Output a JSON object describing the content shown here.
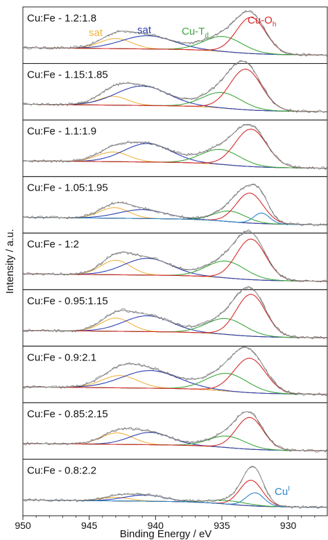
{
  "chart_data": {
    "type": "line",
    "xlabel": "Binding Energy / eV",
    "ylabel": "Intensity / a.u.",
    "xlim": [
      950,
      927
    ],
    "x_reversed": true,
    "xticks": [
      950,
      945,
      940,
      935,
      930
    ],
    "colors": {
      "data": "#222222",
      "envelope": "#8a8a8a",
      "background": "#111111",
      "sat_high": "#f0b341",
      "sat_low": "#2b3fb0",
      "cu_td": "#3aa63a",
      "cu_oh": "#d42a2a",
      "cu_i": "#2a86c8"
    },
    "annotations": [
      {
        "text": "sat",
        "color": "#f0b341"
      },
      {
        "text": "sat",
        "color": "#2b3fb0"
      },
      {
        "text": "Cu-T",
        "sub": "d",
        "color": "#3aa63a"
      },
      {
        "text": "Cu-O",
        "sub": "h",
        "color": "#d42a2a"
      },
      {
        "text": "Cu",
        "sup": "I",
        "color": "#2a86c8"
      }
    ],
    "panels": [
      {
        "label": "Cu:Fe - 1.2:1.8",
        "peaks": [
          {
            "name": "sat",
            "color": "#f0b341",
            "center": 943.0,
            "fwhm": 2.8,
            "height": 0.23
          },
          {
            "name": "sat",
            "color": "#2b3fb0",
            "center": 940.6,
            "fwhm": 4.6,
            "height": 0.3
          },
          {
            "name": "Cu-Td",
            "color": "#3aa63a",
            "center": 934.9,
            "fwhm": 3.4,
            "height": 0.34
          },
          {
            "name": "Cu-Oh",
            "color": "#d42a2a",
            "center": 932.8,
            "fwhm": 2.6,
            "height": 0.82
          }
        ]
      },
      {
        "label": "Cu:Fe - 1.15:1.85",
        "peaks": [
          {
            "name": "sat",
            "color": "#f0b341",
            "center": 943.2,
            "fwhm": 2.6,
            "height": 0.2
          },
          {
            "name": "sat",
            "color": "#2b3fb0",
            "center": 941.0,
            "fwhm": 4.6,
            "height": 0.44
          },
          {
            "name": "Cu-Td",
            "color": "#3aa63a",
            "center": 935.0,
            "fwhm": 3.4,
            "height": 0.35
          },
          {
            "name": "Cu-Oh",
            "color": "#d42a2a",
            "center": 933.2,
            "fwhm": 2.8,
            "height": 0.92
          }
        ]
      },
      {
        "label": "Cu:Fe - 1.1:1.9",
        "peaks": [
          {
            "name": "sat",
            "color": "#f0b341",
            "center": 943.2,
            "fwhm": 2.8,
            "height": 0.22
          },
          {
            "name": "sat",
            "color": "#2b3fb0",
            "center": 940.6,
            "fwhm": 4.2,
            "height": 0.42
          },
          {
            "name": "Cu-Td",
            "color": "#3aa63a",
            "center": 935.1,
            "fwhm": 3.4,
            "height": 0.34
          },
          {
            "name": "Cu-Oh",
            "color": "#d42a2a",
            "center": 932.8,
            "fwhm": 2.8,
            "height": 0.85
          }
        ]
      },
      {
        "label": "Cu:Fe - 1.05:1.95",
        "peaks": [
          {
            "name": "sat",
            "color": "#f0b341",
            "center": 943.1,
            "fwhm": 2.6,
            "height": 0.24
          },
          {
            "name": "sat",
            "color": "#2b3fb0",
            "center": 941.0,
            "fwhm": 4.2,
            "height": 0.2
          },
          {
            "name": "Cu-Td",
            "color": "#3aa63a",
            "center": 934.4,
            "fwhm": 2.8,
            "height": 0.24
          },
          {
            "name": "Cu-Oh",
            "color": "#d42a2a",
            "center": 932.9,
            "fwhm": 2.4,
            "height": 0.68
          },
          {
            "name": "CuI",
            "color": "#2a86c8",
            "center": 932.0,
            "fwhm": 1.4,
            "height": 0.24
          }
        ]
      },
      {
        "label": "Cu:Fe - 1:2",
        "peaks": [
          {
            "name": "sat",
            "color": "#f0b341",
            "center": 943.0,
            "fwhm": 2.6,
            "height": 0.33
          },
          {
            "name": "sat",
            "color": "#2b3fb0",
            "center": 940.6,
            "fwhm": 4.2,
            "height": 0.38
          },
          {
            "name": "Cu-Td",
            "color": "#3aa63a",
            "center": 934.7,
            "fwhm": 3.4,
            "height": 0.38
          },
          {
            "name": "Cu-Oh",
            "color": "#d42a2a",
            "center": 932.8,
            "fwhm": 2.6,
            "height": 0.92
          }
        ]
      },
      {
        "label": "Cu:Fe - 0.95:1.15",
        "peaks": [
          {
            "name": "sat",
            "color": "#f0b341",
            "center": 943.0,
            "fwhm": 2.6,
            "height": 0.3
          },
          {
            "name": "sat",
            "color": "#2b3fb0",
            "center": 940.6,
            "fwhm": 4.2,
            "height": 0.36
          },
          {
            "name": "Cu-Td",
            "color": "#3aa63a",
            "center": 934.7,
            "fwhm": 3.4,
            "height": 0.36
          },
          {
            "name": "Cu-Oh",
            "color": "#d42a2a",
            "center": 932.8,
            "fwhm": 2.6,
            "height": 0.95
          }
        ]
      },
      {
        "label": "Cu:Fe - 0.9:2.1",
        "peaks": [
          {
            "name": "sat",
            "color": "#f0b341",
            "center": 942.7,
            "fwhm": 3.2,
            "height": 0.28
          },
          {
            "name": "sat",
            "color": "#2b3fb0",
            "center": 940.4,
            "fwhm": 5.0,
            "height": 0.4
          },
          {
            "name": "Cu-Td",
            "color": "#3aa63a",
            "center": 934.6,
            "fwhm": 3.6,
            "height": 0.4
          },
          {
            "name": "Cu-Oh",
            "color": "#d42a2a",
            "center": 932.9,
            "fwhm": 2.8,
            "height": 0.78
          }
        ]
      },
      {
        "label": "Cu:Fe - 0.85:2.15",
        "peaks": [
          {
            "name": "sat",
            "color": "#f0b341",
            "center": 942.9,
            "fwhm": 2.8,
            "height": 0.26
          },
          {
            "name": "sat",
            "color": "#2b3fb0",
            "center": 940.4,
            "fwhm": 3.6,
            "height": 0.28
          },
          {
            "name": "Cu-Td",
            "color": "#3aa63a",
            "center": 934.6,
            "fwhm": 3.2,
            "height": 0.26
          },
          {
            "name": "Cu-Oh",
            "color": "#d42a2a",
            "center": 932.9,
            "fwhm": 2.4,
            "height": 0.72
          }
        ]
      },
      {
        "label": "Cu:Fe - 0.8:2.2",
        "peaks": [
          {
            "name": "sat",
            "color": "#f0b341",
            "center": 943.0,
            "fwhm": 2.6,
            "height": 0.08
          },
          {
            "name": "sat",
            "color": "#2b3fb0",
            "center": 940.8,
            "fwhm": 3.6,
            "height": 0.14
          },
          {
            "name": "Cu-Td",
            "color": "#3aa63a",
            "center": 934.6,
            "fwhm": 3.4,
            "height": 0.08
          },
          {
            "name": "Cu-Oh",
            "color": "#d42a2a",
            "center": 932.8,
            "fwhm": 2.0,
            "height": 0.58
          },
          {
            "name": "CuI",
            "color": "#2a86c8",
            "center": 932.5,
            "fwhm": 1.6,
            "height": 0.3
          }
        ]
      }
    ]
  }
}
